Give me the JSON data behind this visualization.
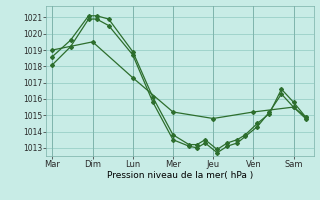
{
  "background_color": "#c8ece6",
  "grid_color": "#a0d4cc",
  "line_color": "#2d6e2d",
  "xlabel": "Pression niveau de la mer( hPa )",
  "ylim": [
    1012.5,
    1021.7
  ],
  "yticks": [
    1013,
    1014,
    1015,
    1016,
    1017,
    1018,
    1019,
    1020,
    1021
  ],
  "x_labels": [
    "Mar",
    "Dim",
    "Lun",
    "Mer",
    "Jeu",
    "Ven",
    "Sam"
  ],
  "x_positions": [
    0,
    1,
    2,
    3,
    4,
    5,
    6
  ],
  "xlim": [
    -0.15,
    6.5
  ],
  "line1_x": [
    0.0,
    0.45,
    0.9,
    1.1,
    1.4,
    2.0,
    2.5,
    3.0,
    3.4,
    3.6,
    3.8,
    4.1,
    4.35,
    4.6,
    4.8,
    5.1,
    5.4,
    5.7,
    6.0,
    6.3
  ],
  "line1_y": [
    1018.6,
    1019.6,
    1021.1,
    1021.1,
    1020.9,
    1018.9,
    1016.1,
    1013.8,
    1013.2,
    1013.2,
    1013.5,
    1012.9,
    1013.3,
    1013.5,
    1013.8,
    1014.5,
    1015.1,
    1016.6,
    1015.8,
    1014.9
  ],
  "line2_x": [
    0.0,
    0.45,
    0.9,
    1.1,
    1.4,
    2.0,
    2.5,
    3.0,
    3.4,
    3.6,
    3.8,
    4.1,
    4.35,
    4.6,
    4.8,
    5.1,
    5.4,
    5.7,
    6.0,
    6.3
  ],
  "line2_y": [
    1018.1,
    1019.2,
    1020.9,
    1020.9,
    1020.5,
    1018.7,
    1015.8,
    1013.5,
    1013.1,
    1013.0,
    1013.3,
    1012.7,
    1013.1,
    1013.3,
    1013.7,
    1014.3,
    1015.2,
    1016.3,
    1015.5,
    1014.8
  ],
  "line3_x": [
    0.0,
    1.0,
    2.0,
    3.0,
    4.0,
    5.0,
    6.0,
    6.3
  ],
  "line3_y": [
    1019.0,
    1019.5,
    1017.3,
    1015.2,
    1014.8,
    1015.2,
    1015.5,
    1014.9
  ]
}
